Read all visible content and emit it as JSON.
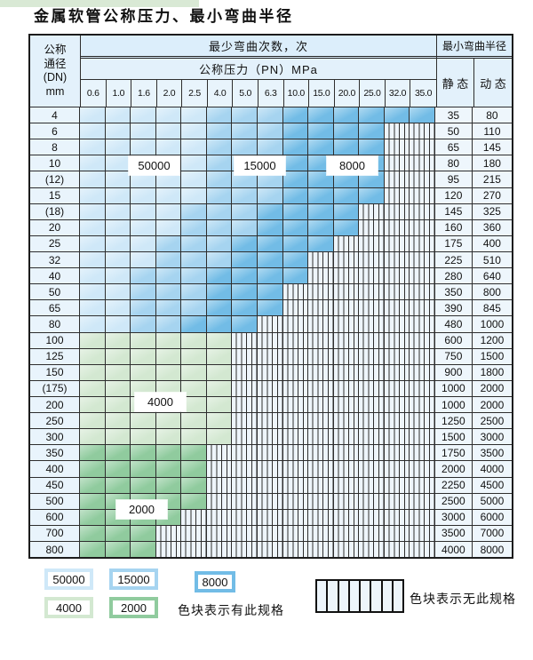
{
  "title": "金属软管公称压力、最小弯曲半径",
  "colors": {
    "c50000": "#cfe8f8",
    "c15000": "#a6d4f0",
    "c8000": "#72bce6",
    "c4000": "#d3e8d1",
    "c2000": "#90cb9e",
    "stripe_bg": "#eef5fb",
    "header_bg": "#e3f1fb",
    "border": "#2e2e2e"
  },
  "fill_legend": {
    "A": "50000",
    "B": "15000",
    "C": "8000",
    "D": "4000",
    "E": "2000",
    "x": "no-spec"
  },
  "table": {
    "header": {
      "dn_lines": [
        "公称",
        "通径",
        "(DN)",
        "mm"
      ],
      "bend_cycles": "最少弯曲次数，次",
      "pressure": "公称压力（PN）MPa",
      "min_radius": "最小弯曲半径",
      "static": "静 态",
      "dynamic": "动 态",
      "pressure_columns": [
        "0.6",
        "1.0",
        "1.6",
        "2.0",
        "2.5",
        "4.0",
        "5.0",
        "6.3",
        "10.0",
        "15.0",
        "20.0",
        "25.0",
        "32.0",
        "35.0"
      ]
    },
    "rows": [
      {
        "dn": "4",
        "fills": "AAAAABBBCCCCCC",
        "static": "35",
        "dynamic": "80"
      },
      {
        "dn": "6",
        "fills": "AAAAABBBCCCCxx",
        "static": "50",
        "dynamic": "110"
      },
      {
        "dn": "8",
        "fills": "AAAAABBBCCCCxx",
        "static": "65",
        "dynamic": "145"
      },
      {
        "dn": "10",
        "fills": "AAAAABBBCCCCxx",
        "static": "80",
        "dynamic": "180"
      },
      {
        "dn": "(12)",
        "fills": "AAAAABBBCCCCxx",
        "static": "95",
        "dynamic": "215"
      },
      {
        "dn": "15",
        "fills": "AAAAABBBCCCCxx",
        "static": "120",
        "dynamic": "270"
      },
      {
        "dn": "(18)",
        "fills": "AAAABBBCCCCxxx",
        "static": "145",
        "dynamic": "325"
      },
      {
        "dn": "20",
        "fills": "AAAABBBCCCCxxx",
        "static": "160",
        "dynamic": "360"
      },
      {
        "dn": "25",
        "fills": "AAABBBCCCCxxxx",
        "static": "175",
        "dynamic": "400"
      },
      {
        "dn": "32",
        "fills": "AAABBBCCCxxxxx",
        "static": "225",
        "dynamic": "510"
      },
      {
        "dn": "40",
        "fills": "AABBBCCCCxxxxx",
        "static": "280",
        "dynamic": "640"
      },
      {
        "dn": "50",
        "fills": "AABBBCCCxxxxxx",
        "static": "350",
        "dynamic": "800"
      },
      {
        "dn": "65",
        "fills": "AABBBCCCxxxxxx",
        "static": "390",
        "dynamic": "845"
      },
      {
        "dn": "80",
        "fills": "AABBCCCxxxxxxx",
        "static": "480",
        "dynamic": "1000"
      },
      {
        "dn": "100",
        "fills": "DDDDDDxxxxxxxx",
        "static": "600",
        "dynamic": "1200"
      },
      {
        "dn": "125",
        "fills": "DDDDDDxxxxxxxx",
        "static": "750",
        "dynamic": "1500"
      },
      {
        "dn": "150",
        "fills": "DDDDDDxxxxxxxx",
        "static": "900",
        "dynamic": "1800"
      },
      {
        "dn": "(175)",
        "fills": "DDDDDDxxxxxxxx",
        "static": "1000",
        "dynamic": "2000"
      },
      {
        "dn": "200",
        "fills": "DDDDDDxxxxxxxx",
        "static": "1000",
        "dynamic": "2000"
      },
      {
        "dn": "250",
        "fills": "DDDDDDxxxxxxxx",
        "static": "1250",
        "dynamic": "2500"
      },
      {
        "dn": "300",
        "fills": "DDDDDDxxxxxxxx",
        "static": "1500",
        "dynamic": "3000"
      },
      {
        "dn": "350",
        "fills": "EEEEExxxxxxxxx",
        "static": "1750",
        "dynamic": "3500"
      },
      {
        "dn": "400",
        "fills": "EEEEExxxxxxxxx",
        "static": "2000",
        "dynamic": "4000"
      },
      {
        "dn": "450",
        "fills": "EEEEExxxxxxxxx",
        "static": "2250",
        "dynamic": "4500"
      },
      {
        "dn": "500",
        "fills": "EEEEExxxxxxxxx",
        "static": "2500",
        "dynamic": "5000"
      },
      {
        "dn": "600",
        "fills": "EEEExxxxxxxxxx",
        "static": "3000",
        "dynamic": "6000"
      },
      {
        "dn": "700",
        "fills": "EEExxxxxxxxxxx",
        "static": "3500",
        "dynamic": "7000"
      },
      {
        "dn": "800",
        "fills": "EEExxxxxxxxxxx",
        "static": "4000",
        "dynamic": "8000"
      }
    ]
  },
  "overlay_labels": [
    {
      "text": "50000"
    },
    {
      "text": "15000"
    },
    {
      "text": "8000"
    },
    {
      "text": "4000"
    },
    {
      "text": "2000"
    }
  ],
  "legend": {
    "items": [
      {
        "value": "50000",
        "color": "#cfe8f8"
      },
      {
        "value": "15000",
        "color": "#a6d4f0"
      },
      {
        "value": "8000",
        "color": "#72bce6"
      },
      {
        "value": "4000",
        "color": "#d3e8d1"
      },
      {
        "value": "2000",
        "color": "#90cb9e"
      }
    ],
    "has_spec_text": "色块表示有此规格",
    "no_spec_text": "色块表示无此规格"
  }
}
